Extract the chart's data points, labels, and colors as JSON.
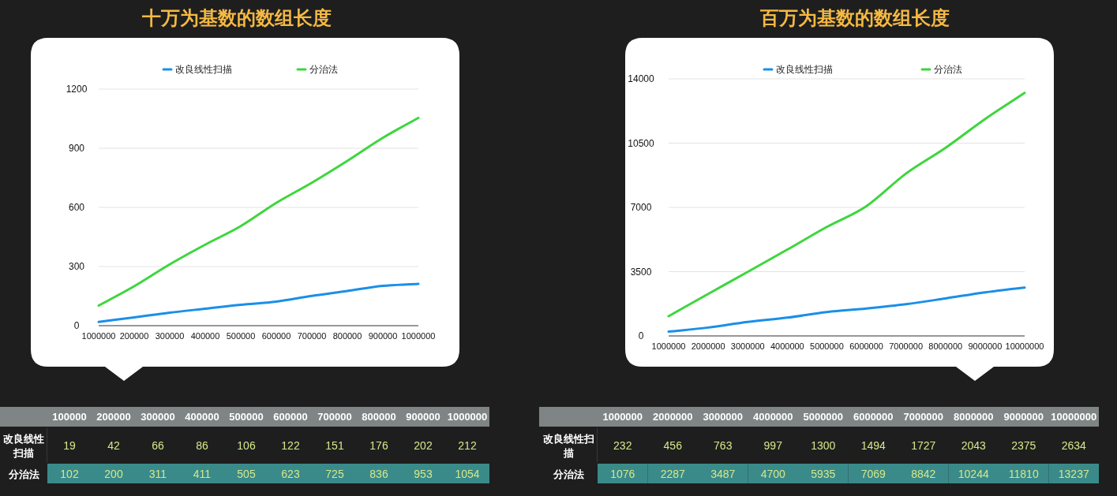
{
  "chart_data": [
    {
      "type": "line",
      "title": "十万为基数的数组长度",
      "categories": [
        "1000000",
        "200000",
        "300000",
        "400000",
        "500000",
        "600000",
        "700000",
        "800000",
        "900000",
        "1000000"
      ],
      "series": [
        {
          "name": "改良线性扫描",
          "color": "#1a8fe8",
          "values": [
            19,
            42,
            66,
            86,
            106,
            122,
            151,
            176,
            202,
            212
          ]
        },
        {
          "name": "分治法",
          "color": "#3dd63d",
          "values": [
            102,
            200,
            311,
            411,
            505,
            623,
            725,
            836,
            953,
            1054
          ]
        }
      ],
      "ylim": [
        0,
        1200
      ],
      "yticks": [
        0,
        300,
        600,
        900,
        1200
      ],
      "grid": "y",
      "legend": "top"
    },
    {
      "type": "line",
      "title": "百万为基数的数组长度",
      "categories": [
        "1000000",
        "2000000",
        "3000000",
        "4000000",
        "5000000",
        "6000000",
        "7000000",
        "8000000",
        "9000000",
        "10000000"
      ],
      "series": [
        {
          "name": "改良线性扫描",
          "color": "#1a8fe8",
          "values": [
            232,
            456,
            763,
            997,
            1300,
            1494,
            1727,
            2043,
            2375,
            2634
          ]
        },
        {
          "name": "分治法",
          "color": "#3dd63d",
          "values": [
            1076,
            2287,
            3487,
            4700,
            5935,
            7069,
            8842,
            10244,
            11810,
            13237
          ]
        }
      ],
      "ylim": [
        0,
        14000
      ],
      "yticks": [
        0,
        3500,
        7000,
        10500,
        14000
      ],
      "grid": "y",
      "legend": "top"
    },
    {
      "type": "heatmap",
      "categories": [
        "100000",
        "200000",
        "300000",
        "400000",
        "500000",
        "600000",
        "700000",
        "800000",
        "900000",
        "1000000"
      ],
      "y_categories": [
        "改良线性扫描",
        "分治法"
      ],
      "cells": [
        [
          19,
          42,
          66,
          86,
          106,
          122,
          151,
          176,
          202,
          212
        ],
        [
          102,
          200,
          311,
          411,
          505,
          623,
          725,
          836,
          953,
          1054
        ]
      ],
      "data_labels": true
    },
    {
      "type": "heatmap",
      "categories": [
        "1000000",
        "2000000",
        "3000000",
        "4000000",
        "5000000",
        "6000000",
        "7000000",
        "8000000",
        "9000000",
        "10000000"
      ],
      "y_categories": [
        "改良线性扫描",
        "分治法"
      ],
      "cells": [
        [
          232,
          456,
          763,
          997,
          1300,
          1494,
          1727,
          2043,
          2375,
          2634
        ],
        [
          1076,
          2287,
          3487,
          4700,
          5935,
          7069,
          8842,
          10244,
          11810,
          13237
        ]
      ],
      "data_labels": true
    }
  ]
}
